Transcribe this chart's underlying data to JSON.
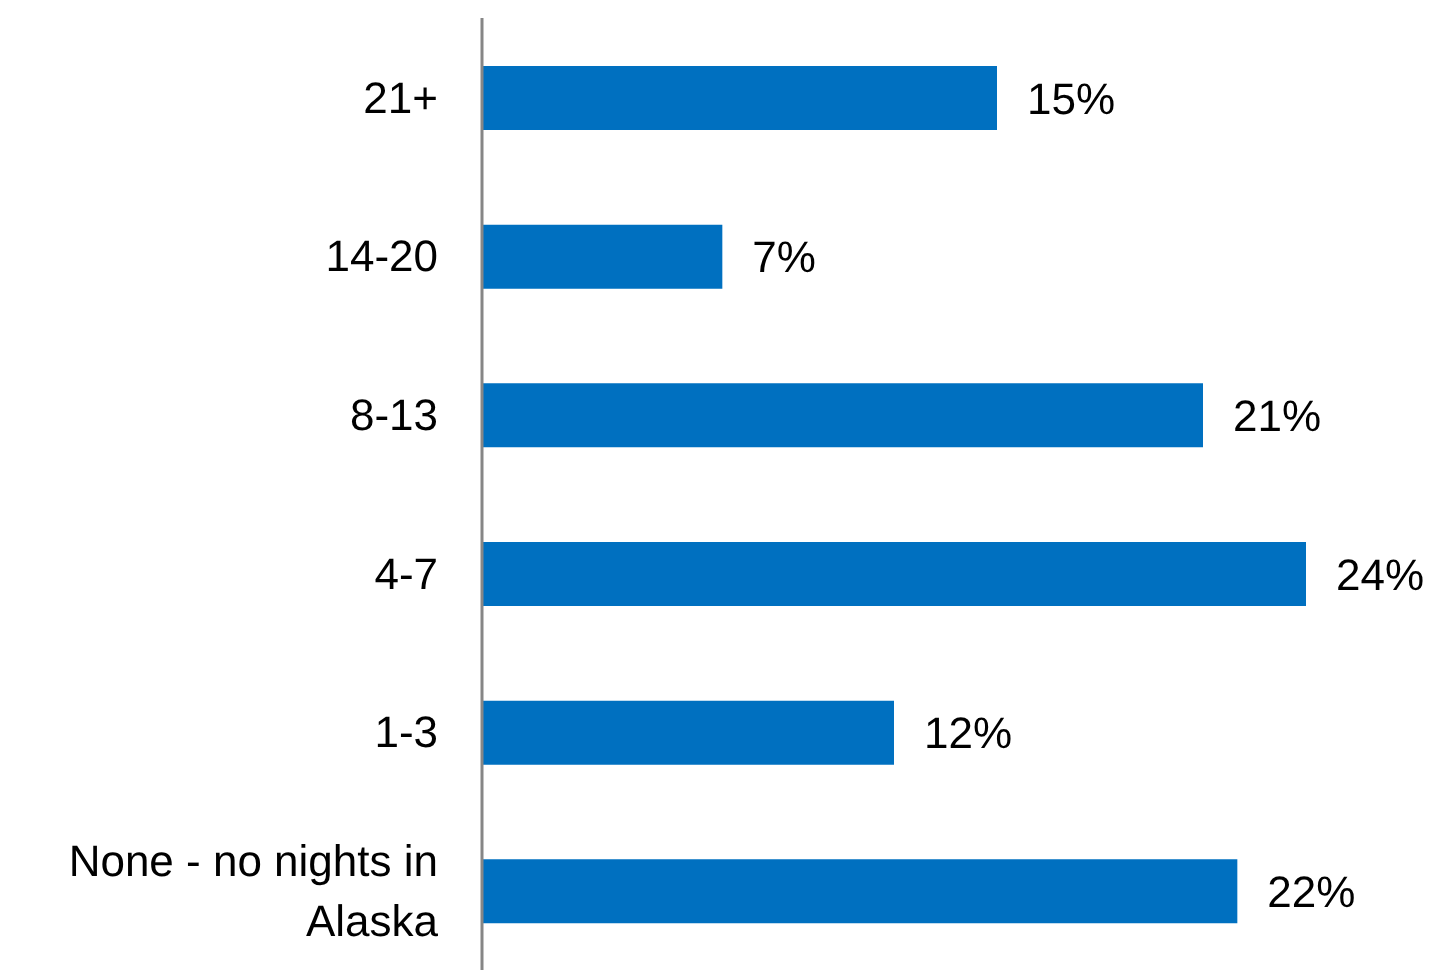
{
  "chart_data": {
    "type": "bar",
    "orientation": "horizontal",
    "tick_labels": "y",
    "categories": [
      "21+",
      "14-20",
      "8-13",
      "4-7",
      "1-3",
      "None - no nights in Alaska"
    ],
    "values": [
      15,
      7,
      21,
      24,
      12,
      22
    ],
    "value_labels": [
      "15%",
      "7%",
      "21%",
      "24%",
      "12%",
      "22%"
    ],
    "color": "#0070c0"
  }
}
